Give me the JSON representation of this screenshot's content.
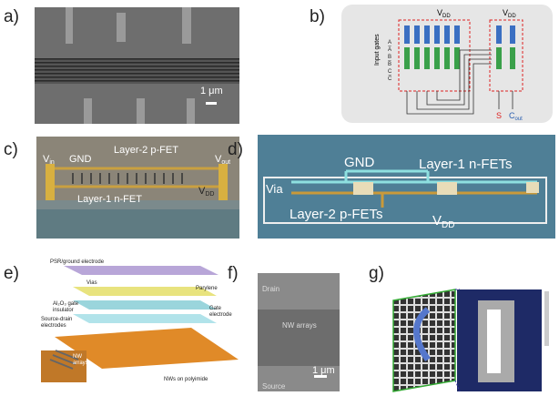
{
  "panels": {
    "a": {
      "label": "a)",
      "scale": "1 μm"
    },
    "b": {
      "label": "b)",
      "vdd_left": {
        "main": "V",
        "sub": "DD"
      },
      "vdd_right": {
        "main": "V",
        "sub": "DD"
      },
      "input_gates": "Input gates",
      "inputs": [
        "A",
        "A̅",
        "B",
        "B̅",
        "C",
        "C̅"
      ],
      "sum": "S",
      "cout": {
        "main": "C",
        "sub": "out"
      }
    },
    "c": {
      "label": "c)",
      "vin": {
        "main": "V",
        "sub": "in"
      },
      "gnd": "GND",
      "layer2": "Layer-2 p-FET",
      "vout": {
        "main": "V",
        "sub": "out"
      },
      "layer1": "Layer-1 n-FET",
      "vdd": {
        "main": "V",
        "sub": "DD"
      }
    },
    "d": {
      "label": "d)",
      "gnd": "GND",
      "layer1": "Layer-1 n-FETs",
      "via": "Via",
      "layer2": "Layer-2 p-FETs",
      "vdd": {
        "main": "V",
        "sub": "DD"
      }
    },
    "e": {
      "label": "e)",
      "psr": "PSR/ground electrode",
      "vias": "Vias",
      "parylene": "Parylene",
      "gate_ins": [
        "Al₂O₃ gate",
        "insulator"
      ],
      "gate_el": [
        "Gate",
        "electrode"
      ],
      "sd": [
        "Source-drain",
        "electrodes"
      ],
      "nws": "NWs on polyimide",
      "inset": [
        "NW",
        "arrays"
      ]
    },
    "f": {
      "label": "f)",
      "drain": "Drain",
      "nw": "NW arrays",
      "source": "Source",
      "scale": "1 μm"
    },
    "g": {
      "label": "g)"
    }
  }
}
